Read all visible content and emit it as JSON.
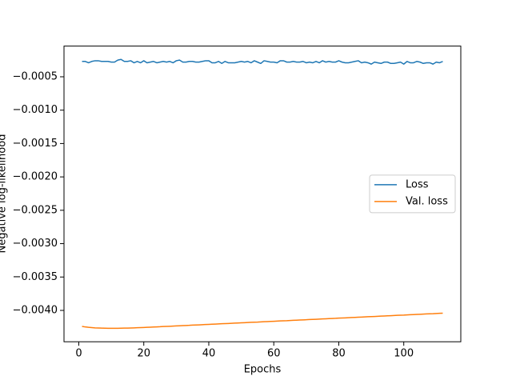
{
  "chart_data": {
    "type": "line",
    "xlabel": "Epochs",
    "ylabel": "Negative log-likelihood",
    "x": [
      1,
      2,
      3,
      4,
      5,
      6,
      7,
      8,
      9,
      10,
      11,
      12,
      13,
      14,
      15,
      16,
      17,
      18,
      19,
      20,
      21,
      22,
      23,
      24,
      25,
      26,
      27,
      28,
      29,
      30,
      31,
      32,
      33,
      34,
      35,
      36,
      37,
      38,
      39,
      40,
      41,
      42,
      43,
      44,
      45,
      46,
      47,
      48,
      49,
      50,
      51,
      52,
      53,
      54,
      55,
      56,
      57,
      58,
      59,
      60,
      61,
      62,
      63,
      64,
      65,
      66,
      67,
      68,
      69,
      70,
      71,
      72,
      73,
      74,
      75,
      76,
      77,
      78,
      79,
      80,
      81,
      82,
      83,
      84,
      85,
      86,
      87,
      88,
      89,
      90,
      91,
      92,
      93,
      94,
      95,
      96,
      97,
      98,
      99,
      100,
      101,
      102,
      103,
      104,
      105,
      106,
      107,
      108,
      109,
      110,
      111,
      112
    ],
    "series": [
      {
        "name": "Loss",
        "color": "#1f77b4",
        "values": [
          -0.00027,
          -0.00027,
          -0.00029,
          -0.00027,
          -0.00026,
          -0.00026,
          -0.00027,
          -0.00027,
          -0.00027,
          -0.00028,
          -0.00028,
          -0.00025,
          -0.00024,
          -0.00027,
          -0.00027,
          -0.00026,
          -0.00029,
          -0.00027,
          -0.00029,
          -0.00026,
          -0.00029,
          -0.00028,
          -0.00027,
          -0.00029,
          -0.00028,
          -0.00027,
          -0.00028,
          -0.00027,
          -0.00029,
          -0.00026,
          -0.00025,
          -0.00028,
          -0.00028,
          -0.00027,
          -0.00027,
          -0.00028,
          -0.00028,
          -0.00027,
          -0.00026,
          -0.00026,
          -0.00029,
          -0.00029,
          -0.00027,
          -0.0003,
          -0.00027,
          -0.00029,
          -0.00029,
          -0.00029,
          -0.00028,
          -0.00027,
          -0.00028,
          -0.00027,
          -0.00029,
          -0.00026,
          -0.00028,
          -0.0003,
          -0.00026,
          -0.00027,
          -0.00028,
          -0.00028,
          -0.00029,
          -0.00026,
          -0.00026,
          -0.00028,
          -0.00028,
          -0.00027,
          -0.00028,
          -0.00028,
          -0.00027,
          -0.00029,
          -0.00028,
          -0.00029,
          -0.00027,
          -0.00029,
          -0.00026,
          -0.00028,
          -0.00027,
          -0.00028,
          -0.00028,
          -0.00026,
          -0.00028,
          -0.00029,
          -0.00029,
          -0.00028,
          -0.00027,
          -0.00026,
          -0.00029,
          -0.00028,
          -0.00029,
          -0.00031,
          -0.00028,
          -0.00029,
          -0.0003,
          -0.00028,
          -0.00028,
          -0.0003,
          -0.0003,
          -0.00029,
          -0.00028,
          -0.00031,
          -0.00027,
          -0.00029,
          -0.00029,
          -0.00027,
          -0.00028,
          -0.0003,
          -0.00029,
          -0.00029,
          -0.00031,
          -0.00028,
          -0.00029,
          -0.00027
        ]
      },
      {
        "name": "Val. loss",
        "color": "#ff7f0e",
        "values": [
          -0.00424,
          -0.004248,
          -0.004254,
          -0.004258,
          -0.004262,
          -0.004264,
          -0.004266,
          -0.004267,
          -0.004268,
          -0.004268,
          -0.004268,
          -0.004268,
          -0.004267,
          -0.004266,
          -0.004265,
          -0.004264,
          -0.004262,
          -0.00426,
          -0.004258,
          -0.004256,
          -0.004254,
          -0.004252,
          -0.004249,
          -0.004247,
          -0.004245,
          -0.004242,
          -0.00424,
          -0.004238,
          -0.004235,
          -0.004233,
          -0.004231,
          -0.004228,
          -0.004226,
          -0.004224,
          -0.004221,
          -0.004219,
          -0.004217,
          -0.004214,
          -0.004212,
          -0.00421,
          -0.004207,
          -0.004205,
          -0.004203,
          -0.0042,
          -0.004198,
          -0.004196,
          -0.004193,
          -0.004191,
          -0.004189,
          -0.004186,
          -0.004184,
          -0.004182,
          -0.004179,
          -0.004177,
          -0.004175,
          -0.004172,
          -0.00417,
          -0.004168,
          -0.004165,
          -0.004163,
          -0.004161,
          -0.004158,
          -0.004156,
          -0.004154,
          -0.004151,
          -0.004149,
          -0.004147,
          -0.004144,
          -0.004142,
          -0.00414,
          -0.004137,
          -0.004135,
          -0.004133,
          -0.00413,
          -0.004128,
          -0.004126,
          -0.004123,
          -0.004121,
          -0.004119,
          -0.004116,
          -0.004114,
          -0.004112,
          -0.004109,
          -0.004107,
          -0.004105,
          -0.004102,
          -0.0041,
          -0.004098,
          -0.004095,
          -0.004093,
          -0.004091,
          -0.004088,
          -0.004086,
          -0.004084,
          -0.004081,
          -0.004079,
          -0.004077,
          -0.004074,
          -0.004072,
          -0.00407,
          -0.004067,
          -0.004065,
          -0.004063,
          -0.00406,
          -0.004058,
          -0.004056,
          -0.004053,
          -0.004051,
          -0.004049,
          -0.004046,
          -0.004044,
          -0.004042
        ]
      }
    ],
    "xlim": [
      -4.55,
      117.55
    ],
    "xticks": [
      0,
      20,
      40,
      60,
      80,
      100
    ],
    "ylim": [
      -0.00447,
      -4e-05
    ],
    "yticks": [
      {
        "value": -0.0005,
        "label": "−0.0005"
      },
      {
        "value": -0.001,
        "label": "−0.0010"
      },
      {
        "value": -0.0015,
        "label": "−0.0015"
      },
      {
        "value": -0.002,
        "label": "−0.0020"
      },
      {
        "value": -0.0025,
        "label": "−0.0025"
      },
      {
        "value": -0.003,
        "label": "−0.0030"
      },
      {
        "value": -0.0035,
        "label": "−0.0035"
      },
      {
        "value": -0.004,
        "label": "−0.0040"
      }
    ],
    "grid": false,
    "legend": "center right"
  }
}
